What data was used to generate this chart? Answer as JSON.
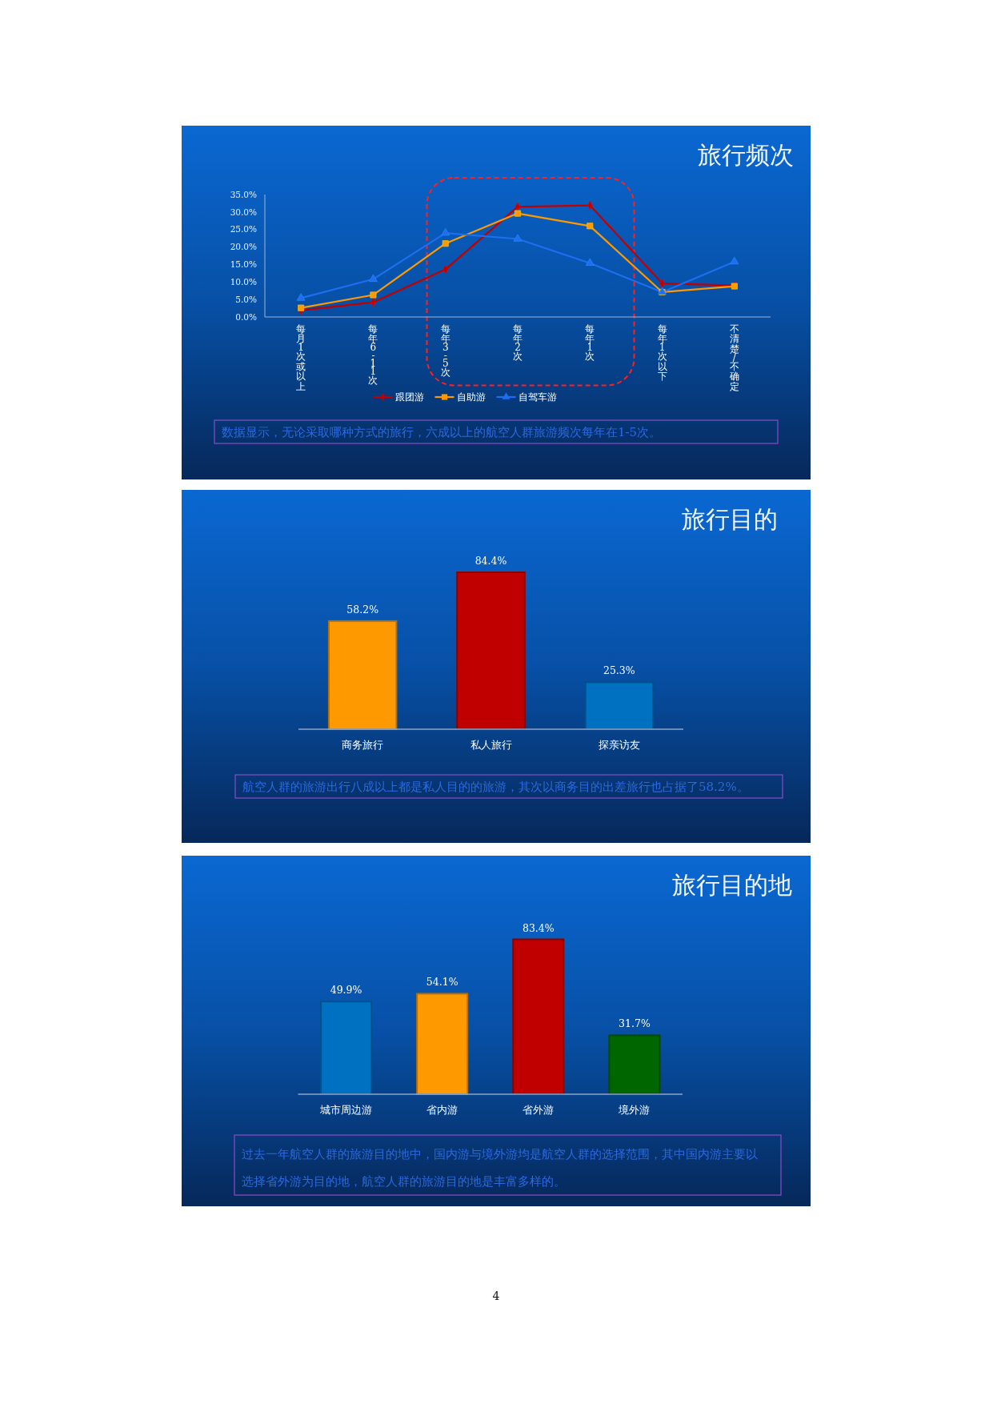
{
  "chart_data": [
    {
      "type": "line",
      "title": "旅行频次",
      "categories": [
        "每月1次或以上",
        "每年6-11次",
        "每年3-5次",
        "每年2次",
        "每年1次",
        "每年1次以下",
        "不清楚/不确定"
      ],
      "series": [
        {
          "name": "跟团游",
          "color": "#c00000",
          "marker": "diamond",
          "values": [
            1.9,
            4.2,
            13.6,
            31.5,
            31.9,
            9.6,
            9.0
          ]
        },
        {
          "name": "自助游",
          "color": "#ff9900",
          "marker": "square",
          "values": [
            2.6,
            6.3,
            21.0,
            29.6,
            26.0,
            7.1,
            8.8
          ]
        },
        {
          "name": "自驾车游",
          "color": "#1e6ef0",
          "marker": "triangle",
          "values": [
            5.4,
            10.8,
            24.0,
            22.3,
            15.4,
            7.1,
            15.8
          ]
        }
      ],
      "ylim": [
        0,
        35
      ],
      "yticks": [
        {
          "value": 0,
          "label": "0.0%"
        },
        {
          "value": 5,
          "label": "5.0%"
        },
        {
          "value": 10,
          "label": "10.0%"
        },
        {
          "value": 15,
          "label": "15.0%"
        },
        {
          "value": 20,
          "label": "20.0%"
        },
        {
          "value": 25,
          "label": "25.0%"
        },
        {
          "value": 30,
          "label": "30.0%"
        },
        {
          "value": 35,
          "label": "35.0%"
        }
      ],
      "legend": "bottom",
      "annotations": [
        "数据显示，无论采取哪种方式的旅行，六成以上的航空人群旅游频次每年在1-5次。"
      ]
    },
    {
      "type": "bar",
      "title": "旅行目的",
      "categories": [
        "商务旅行",
        "私人旅行",
        "探亲访友"
      ],
      "values": [
        58.2,
        84.4,
        25.3
      ],
      "colors": [
        "#ff9900",
        "#c00000",
        "#0070c0"
      ],
      "value_labels": [
        "58.2%",
        "84.4%",
        "25.3%"
      ],
      "tick_labels": "x",
      "annotations": [
        "航空人群的旅游出行八成以上都是私人目的的旅游，其次以商务目的出差旅行也占据了58.2%。"
      ]
    },
    {
      "type": "bar",
      "title": "旅行目的地",
      "categories": [
        "城市周边游",
        "省内游",
        "省外游",
        "境外游"
      ],
      "values": [
        49.9,
        54.1,
        83.4,
        31.7
      ],
      "colors": [
        "#0070c0",
        "#ff9900",
        "#c00000",
        "#006600"
      ],
      "value_labels": [
        "49.9%",
        "54.1%",
        "83.4%",
        "31.7%"
      ],
      "tick_labels": "x",
      "annotations": [
        "过去一年航空人群的旅游目的地中，国内游与境外游均是航空人群的选择范围，其中国内游主要以选择省外游为目的地，航空人群的旅游目的地是丰富多样的。",
        "4"
      ]
    }
  ]
}
